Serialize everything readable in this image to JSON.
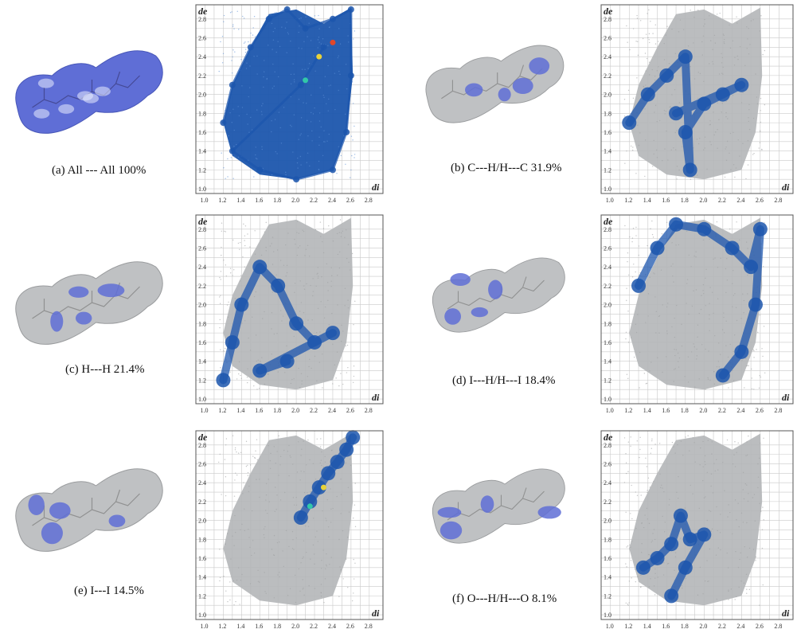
{
  "figure": {
    "panels": [
      {
        "id": "a",
        "caption": "(a) All --- All 100%",
        "highlight": "full",
        "chart_data": {
          "type": "scatter",
          "title": "",
          "xlabel": "di",
          "ylabel": "de",
          "xlim": [
            0.9,
            2.95
          ],
          "ylim": [
            0.95,
            2.95
          ],
          "x_ticks": [
            "1.0",
            "1.2",
            "1.4",
            "1.6",
            "1.8",
            "2.0",
            "2.2",
            "2.4",
            "2.6",
            "2.8"
          ],
          "y_ticks": [
            "1.0",
            "1.2",
            "1.4",
            "1.6",
            "1.8",
            "2.0",
            "2.2",
            "2.4",
            "2.6",
            "2.8"
          ],
          "grid": true,
          "series": [
            {
              "values": [
                [
                  1.2,
                  1.7
                ],
                [
                  1.3,
                  2.1
                ],
                [
                  1.5,
                  2.5
                ],
                [
                  1.7,
                  2.8
                ],
                [
                  1.9,
                  2.9
                ],
                [
                  2.1,
                  2.7
                ],
                [
                  2.4,
                  2.8
                ],
                [
                  2.6,
                  2.9
                ],
                [
                  2.6,
                  2.2
                ],
                [
                  2.55,
                  1.6
                ],
                [
                  2.4,
                  1.2
                ],
                [
                  2.0,
                  1.1
                ],
                [
                  1.6,
                  1.2
                ],
                [
                  1.3,
                  1.4
                ],
                [
                  2.05,
                  2.1
                ],
                [
                  2.3,
                  2.5
                ]
              ]
            }
          ],
          "hot_spots": [
            [
              2.1,
              2.15
            ],
            [
              2.25,
              2.4
            ],
            [
              2.4,
              2.55
            ]
          ]
        },
        "icons": {
          "surface": "hirshfeld-surface-icon"
        }
      },
      {
        "id": "b",
        "caption": "(b) C---H/H---C 31.9%",
        "highlight": "partial",
        "chart_data": {
          "type": "scatter",
          "title": "",
          "xlabel": "di",
          "ylabel": "de",
          "xlim": [
            0.9,
            2.95
          ],
          "ylim": [
            0.95,
            2.95
          ],
          "x_ticks": [
            "1.0",
            "1.2",
            "1.4",
            "1.6",
            "1.8",
            "2.0",
            "2.2",
            "2.4",
            "2.6",
            "2.8"
          ],
          "y_ticks": [
            "1.0",
            "1.2",
            "1.4",
            "1.6",
            "1.8",
            "2.0",
            "2.2",
            "2.4",
            "2.6",
            "2.8"
          ],
          "grid": true,
          "series": [
            {
              "values": [
                [
                  1.2,
                  1.7
                ],
                [
                  1.4,
                  2.0
                ],
                [
                  1.6,
                  2.2
                ],
                [
                  1.8,
                  2.4
                ],
                [
                  1.85,
                  1.2
                ],
                [
                  1.8,
                  1.6
                ],
                [
                  2.0,
                  1.9
                ],
                [
                  2.2,
                  2.0
                ],
                [
                  2.4,
                  2.1
                ],
                [
                  1.7,
                  1.8
                ]
              ]
            }
          ]
        },
        "icons": {
          "surface": "hirshfeld-surface-icon"
        }
      },
      {
        "id": "c",
        "caption": "(c) H---H 21.4%",
        "highlight": "partial",
        "chart_data": {
          "type": "scatter",
          "title": "",
          "xlabel": "di",
          "ylabel": "de",
          "xlim": [
            0.9,
            2.95
          ],
          "ylim": [
            0.95,
            2.95
          ],
          "x_ticks": [
            "1.0",
            "1.2",
            "1.4",
            "1.6",
            "1.8",
            "2.0",
            "2.2",
            "2.4",
            "2.6",
            "2.8"
          ],
          "y_ticks": [
            "1.0",
            "1.2",
            "1.4",
            "1.6",
            "1.8",
            "2.0",
            "2.2",
            "2.4",
            "2.6",
            "2.8"
          ],
          "grid": true,
          "series": [
            {
              "values": [
                [
                  1.2,
                  1.2
                ],
                [
                  1.3,
                  1.6
                ],
                [
                  1.4,
                  2.0
                ],
                [
                  1.6,
                  2.4
                ],
                [
                  1.8,
                  2.2
                ],
                [
                  2.0,
                  1.8
                ],
                [
                  2.2,
                  1.6
                ],
                [
                  2.4,
                  1.7
                ],
                [
                  1.6,
                  1.3
                ],
                [
                  1.9,
                  1.4
                ]
              ]
            }
          ]
        },
        "icons": {
          "surface": "hirshfeld-surface-icon"
        }
      },
      {
        "id": "d",
        "caption": "(d) I---H/H---I 18.4%",
        "highlight": "partial",
        "chart_data": {
          "type": "scatter",
          "title": "",
          "xlabel": "di",
          "ylabel": "de",
          "xlim": [
            0.9,
            2.95
          ],
          "ylim": [
            0.95,
            2.95
          ],
          "x_ticks": [
            "1.0",
            "1.2",
            "1.4",
            "1.6",
            "1.8",
            "2.0",
            "2.2",
            "2.4",
            "2.6",
            "2.8"
          ],
          "y_ticks": [
            "1.0",
            "1.2",
            "1.4",
            "1.6",
            "1.8",
            "2.0",
            "2.2",
            "2.4",
            "2.6",
            "2.8"
          ],
          "grid": true,
          "series": [
            {
              "values": [
                [
                  1.3,
                  2.2
                ],
                [
                  1.5,
                  2.6
                ],
                [
                  1.7,
                  2.85
                ],
                [
                  2.0,
                  2.8
                ],
                [
                  2.3,
                  2.6
                ],
                [
                  2.5,
                  2.4
                ],
                [
                  2.6,
                  2.8
                ],
                [
                  2.55,
                  2.0
                ],
                [
                  2.4,
                  1.5
                ],
                [
                  2.2,
                  1.25
                ]
              ]
            }
          ]
        },
        "icons": {
          "surface": "hirshfeld-surface-icon"
        }
      },
      {
        "id": "e",
        "caption": "(e) I---I 14.5%",
        "highlight": "partial",
        "chart_data": {
          "type": "scatter",
          "title": "",
          "xlabel": "di",
          "ylabel": "de",
          "xlim": [
            0.9,
            2.95
          ],
          "ylim": [
            0.95,
            2.95
          ],
          "x_ticks": [
            "1.0",
            "1.2",
            "1.4",
            "1.6",
            "1.8",
            "2.0",
            "2.2",
            "2.4",
            "2.6",
            "2.8"
          ],
          "y_ticks": [
            "1.0",
            "1.2",
            "1.4",
            "1.6",
            "1.8",
            "2.0",
            "2.2",
            "2.4",
            "2.6",
            "2.8"
          ],
          "grid": true,
          "series": [
            {
              "values": [
                [
                  2.05,
                  2.03
                ],
                [
                  2.15,
                  2.2
                ],
                [
                  2.25,
                  2.35
                ],
                [
                  2.35,
                  2.5
                ],
                [
                  2.45,
                  2.62
                ],
                [
                  2.55,
                  2.75
                ],
                [
                  2.62,
                  2.88
                ]
              ]
            }
          ],
          "hot_spots": [
            [
              2.15,
              2.15
            ],
            [
              2.3,
              2.35
            ]
          ]
        },
        "icons": {
          "surface": "hirshfeld-surface-icon"
        }
      },
      {
        "id": "f",
        "caption": "(f) O---H/H---O 8.1%",
        "highlight": "partial",
        "chart_data": {
          "type": "scatter",
          "title": "",
          "xlabel": "di",
          "ylabel": "de",
          "xlim": [
            0.9,
            2.95
          ],
          "ylim": [
            0.95,
            2.95
          ],
          "x_ticks": [
            "1.0",
            "1.2",
            "1.4",
            "1.6",
            "1.8",
            "2.0",
            "2.2",
            "2.4",
            "2.6",
            "2.8"
          ],
          "y_ticks": [
            "1.0",
            "1.2",
            "1.4",
            "1.6",
            "1.8",
            "2.0",
            "2.2",
            "2.4",
            "2.6",
            "2.8"
          ],
          "grid": true,
          "series": [
            {
              "values": [
                [
                  1.35,
                  1.5
                ],
                [
                  1.5,
                  1.6
                ],
                [
                  1.65,
                  1.75
                ],
                [
                  1.75,
                  2.05
                ],
                [
                  1.85,
                  1.8
                ],
                [
                  2.0,
                  1.85
                ],
                [
                  1.8,
                  1.5
                ],
                [
                  1.65,
                  1.2
                ]
              ]
            }
          ]
        },
        "icons": {
          "surface": "hirshfeld-surface-icon"
        }
      }
    ],
    "colors": {
      "fingerprint_gray": "#b4b6b8",
      "contact_blue": "#1c56ad",
      "surface_gray": "#bfc1c3",
      "surface_blue": "#5f6ed6",
      "grid": "#c9c9c9",
      "frame": "#555555"
    }
  }
}
